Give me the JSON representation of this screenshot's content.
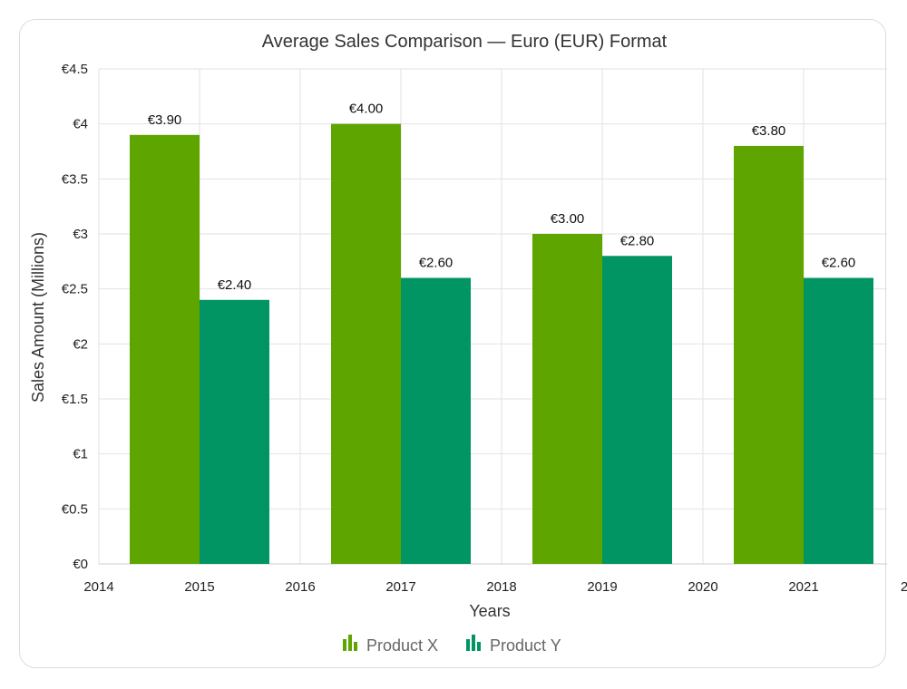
{
  "chart_data": {
    "type": "bar",
    "title": "Average Sales Comparison — Euro (EUR) Format",
    "xlabel": "Years",
    "ylabel": "Sales Amount (Millions)",
    "ylim": [
      0,
      4.5
    ],
    "yticks": [
      "€0",
      "€0.5",
      "€1",
      "€1.5",
      "€2",
      "€2.5",
      "€3",
      "€3.5",
      "€4",
      "€4.5"
    ],
    "xticks": [
      "2014",
      "2015",
      "2016",
      "2017",
      "2018",
      "2019",
      "2020",
      "2021",
      "2"
    ],
    "categories": [
      "2015",
      "2017",
      "2019",
      "2021"
    ],
    "series": [
      {
        "name": "Product X",
        "color": "#5ea500",
        "values": [
          3.9,
          4.0,
          3.0,
          3.8
        ],
        "labels": [
          "€3.90",
          "€4.00",
          "€3.00",
          "€3.80"
        ]
      },
      {
        "name": "Product Y",
        "color": "#009563",
        "values": [
          2.4,
          2.6,
          2.8,
          2.6
        ],
        "labels": [
          "€2.40",
          "€2.60",
          "€2.80",
          "€2.60"
        ]
      }
    ],
    "grid": true,
    "legend": "bottom-center"
  }
}
